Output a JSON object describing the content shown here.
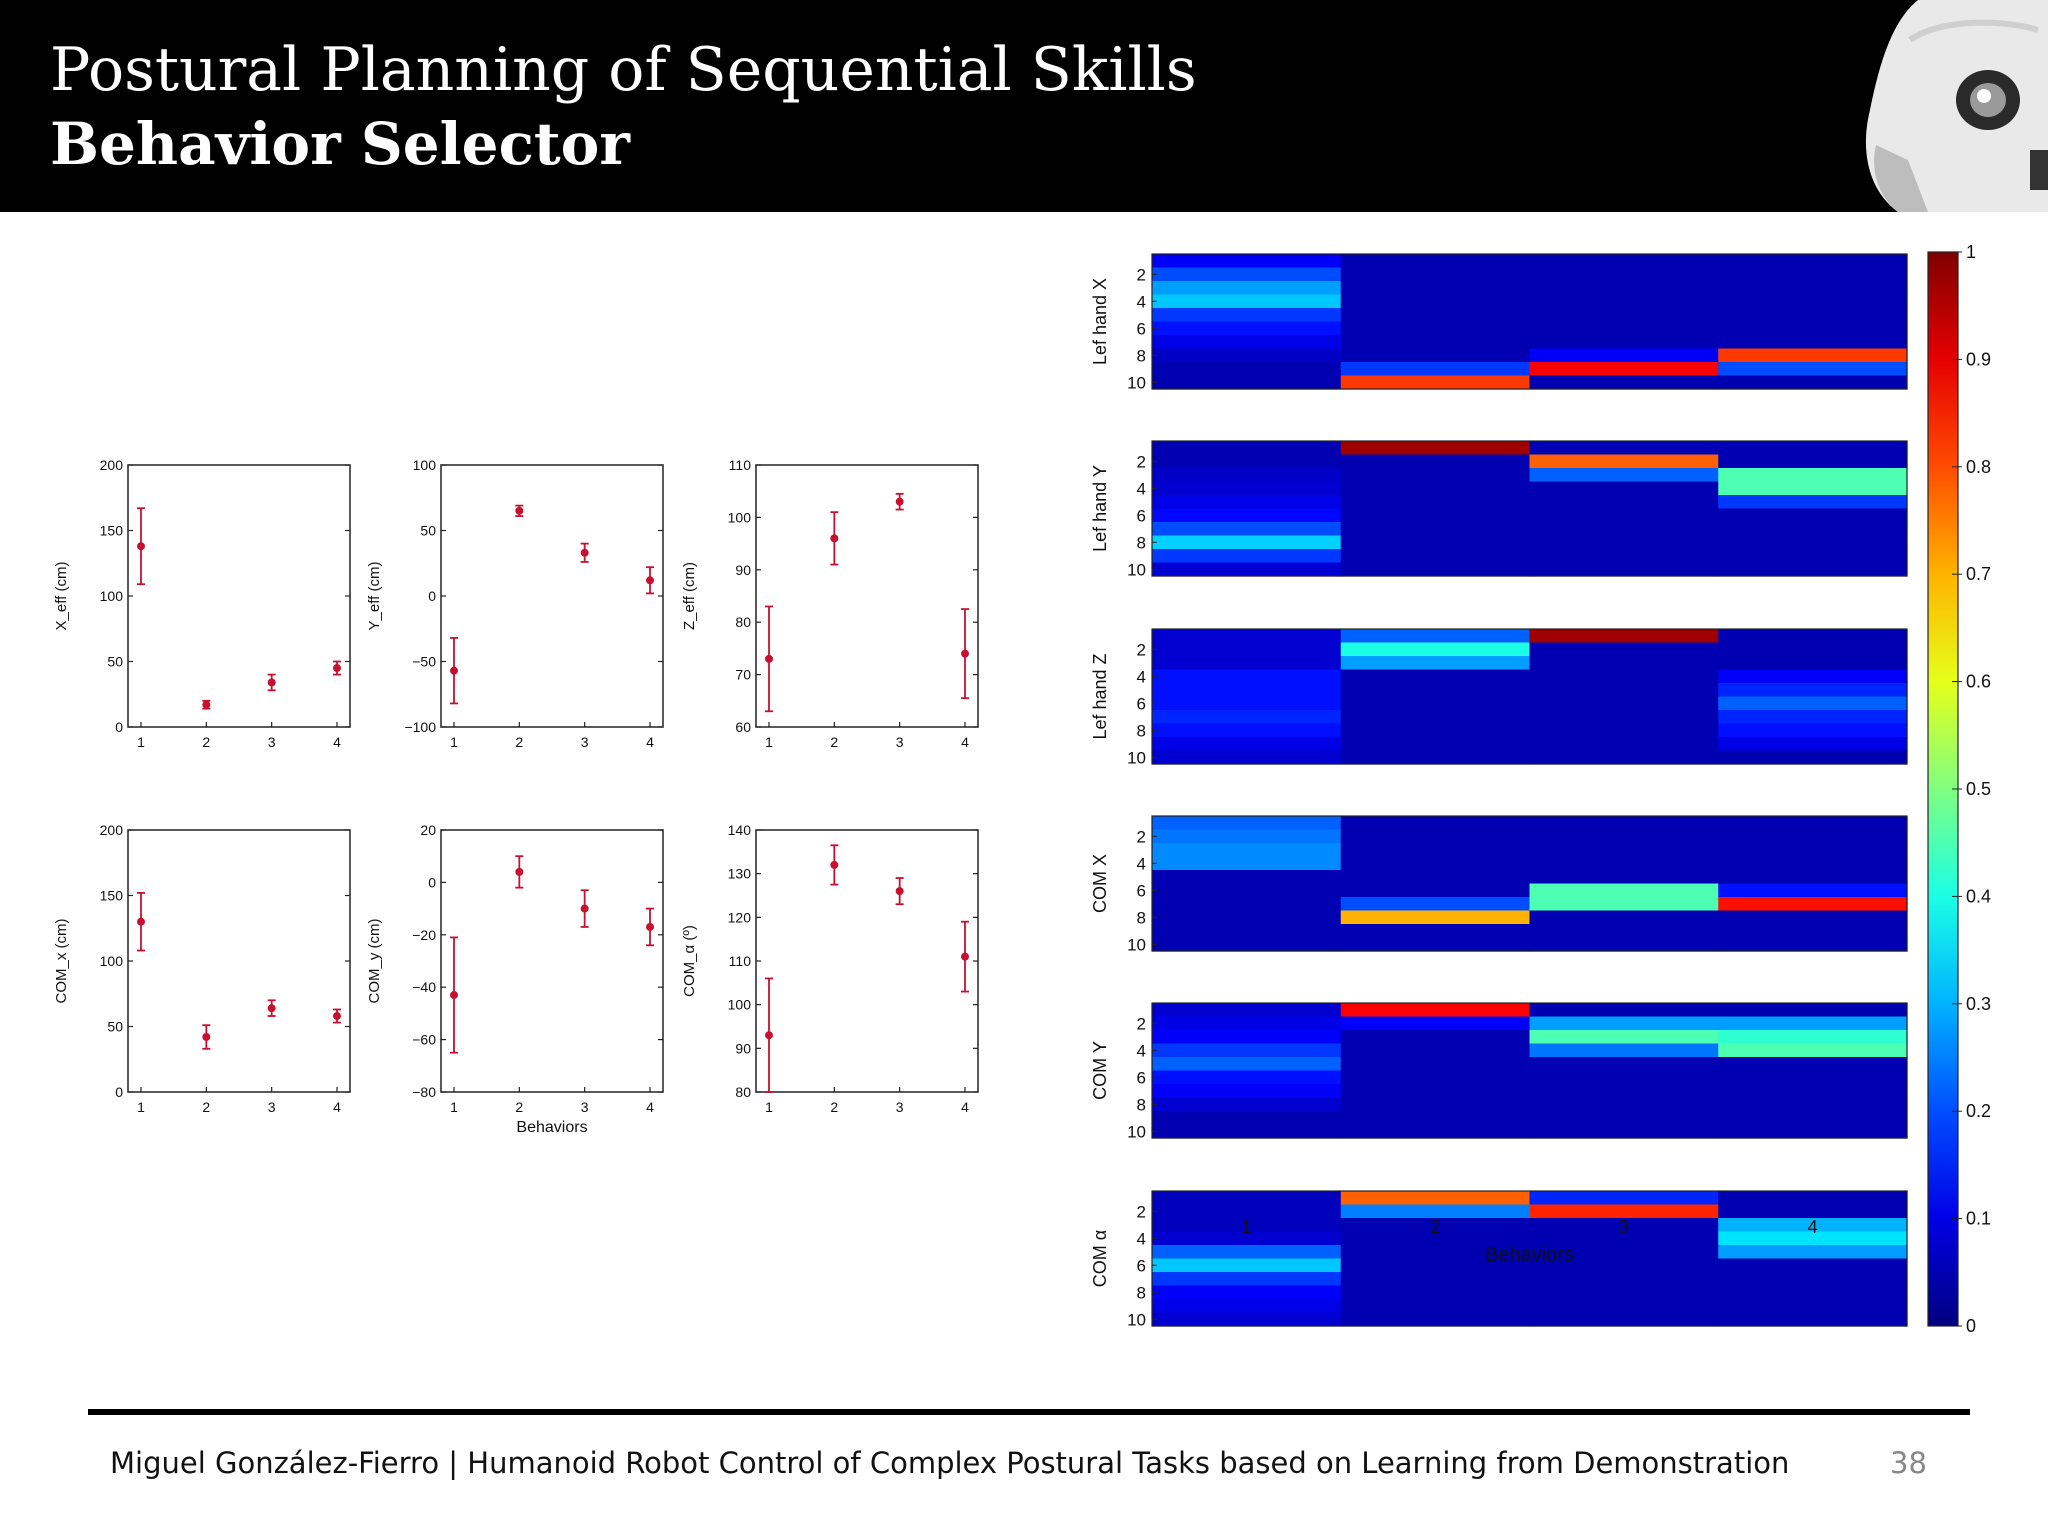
{
  "header": {
    "title": "Postural Planning of Sequential Skills",
    "subtitle": "Behavior Selector"
  },
  "footer": {
    "text": "Miguel González-Fierro  |  Humanoid Robot Control of Complex Postural Tasks based on Learning from Demonstration",
    "page": "38"
  },
  "chart_data": [
    {
      "type": "scatter",
      "ylabel": "X_eff (cm)",
      "x": [
        1,
        2,
        3,
        4
      ],
      "y": [
        138,
        17,
        34,
        45
      ],
      "err": [
        29,
        3,
        6,
        5
      ],
      "ylim": [
        0,
        200
      ],
      "yticks": [
        0,
        50,
        100,
        150,
        200
      ],
      "xticks": [
        1,
        2,
        3,
        4
      ],
      "xlabel": ""
    },
    {
      "type": "scatter",
      "ylabel": "Y_eff (cm)",
      "x": [
        1,
        2,
        3,
        4
      ],
      "y": [
        -57,
        65,
        33,
        12
      ],
      "err": [
        25,
        4,
        7,
        10
      ],
      "ylim": [
        -100,
        100
      ],
      "yticks": [
        -100,
        -50,
        0,
        50,
        100
      ],
      "xticks": [
        1,
        2,
        3,
        4
      ],
      "xlabel": ""
    },
    {
      "type": "scatter",
      "ylabel": "Z_eff (cm)",
      "x": [
        1,
        2,
        3,
        4
      ],
      "y": [
        73,
        96,
        103,
        74
      ],
      "err": [
        10,
        5,
        1.5,
        8.5
      ],
      "ylim": [
        60,
        110
      ],
      "yticks": [
        60,
        70,
        80,
        90,
        100,
        110
      ],
      "xticks": [
        1,
        2,
        3,
        4
      ],
      "xlabel": ""
    },
    {
      "type": "scatter",
      "ylabel": "COM_x (cm)",
      "x": [
        1,
        2,
        3,
        4
      ],
      "y": [
        130,
        42,
        64,
        58
      ],
      "err": [
        22,
        9,
        6,
        5
      ],
      "ylim": [
        0,
        200
      ],
      "yticks": [
        0,
        50,
        100,
        150,
        200
      ],
      "xticks": [
        1,
        2,
        3,
        4
      ],
      "xlabel": ""
    },
    {
      "type": "scatter",
      "ylabel": "COM_y (cm)",
      "x": [
        1,
        2,
        3,
        4
      ],
      "y": [
        -43,
        4,
        -10,
        -17
      ],
      "err": [
        22,
        6,
        7,
        7
      ],
      "ylim": [
        -80,
        20
      ],
      "yticks": [
        -80,
        -60,
        -40,
        -20,
        0,
        20
      ],
      "xticks": [
        1,
        2,
        3,
        4
      ],
      "xlabel": "Behaviors"
    },
    {
      "type": "scatter",
      "ylabel": "COM_α (º)",
      "x": [
        1,
        2,
        3,
        4
      ],
      "y": [
        93,
        132,
        126,
        111
      ],
      "err": [
        13,
        4.5,
        3,
        8
      ],
      "ylim": [
        80,
        140
      ],
      "yticks": [
        80,
        90,
        100,
        110,
        120,
        130,
        140
      ],
      "xticks": [
        1,
        2,
        3,
        4
      ],
      "xlabel": ""
    },
    {
      "type": "heatmap",
      "xlabel": "Behaviors",
      "categories": [
        1,
        2,
        3,
        4
      ],
      "colorbar": {
        "min": 0,
        "max": 1,
        "ticks": [
          "0",
          "0.1",
          "0.2",
          "0.3",
          "0.4",
          "0.5",
          "0.6",
          "0.7",
          "0.8",
          "0.9",
          "1"
        ]
      },
      "yticks": [
        "2",
        "4",
        "6",
        "8",
        "10"
      ],
      "panels": [
        {
          "name": "Lef hand X",
          "values": [
            [
              0.12,
              0.05,
              0.05,
              0.05
            ],
            [
              0.2,
              0.05,
              0.05,
              0.05
            ],
            [
              0.28,
              0.05,
              0.05,
              0.05
            ],
            [
              0.32,
              0.05,
              0.05,
              0.05
            ],
            [
              0.18,
              0.05,
              0.05,
              0.05
            ],
            [
              0.14,
              0.05,
              0.05,
              0.05
            ],
            [
              0.1,
              0.05,
              0.05,
              0.05
            ],
            [
              0.07,
              0.05,
              0.12,
              0.82
            ],
            [
              0.05,
              0.18,
              0.88,
              0.2
            ],
            [
              0.05,
              0.82,
              0.05,
              0.05
            ]
          ]
        },
        {
          "name": "Lef hand Y",
          "values": [
            [
              0.05,
              0.97,
              0.05,
              0.05
            ],
            [
              0.05,
              0.05,
              0.78,
              0.05
            ],
            [
              0.07,
              0.05,
              0.22,
              0.45
            ],
            [
              0.08,
              0.05,
              0.05,
              0.45
            ],
            [
              0.1,
              0.05,
              0.05,
              0.18
            ],
            [
              0.13,
              0.05,
              0.05,
              0.05
            ],
            [
              0.2,
              0.05,
              0.05,
              0.05
            ],
            [
              0.33,
              0.05,
              0.05,
              0.05
            ],
            [
              0.18,
              0.05,
              0.05,
              0.05
            ],
            [
              0.08,
              0.05,
              0.05,
              0.05
            ]
          ]
        },
        {
          "name": "Lef hand Z",
          "values": [
            [
              0.08,
              0.22,
              0.97,
              0.05
            ],
            [
              0.08,
              0.4,
              0.05,
              0.05
            ],
            [
              0.08,
              0.28,
              0.05,
              0.05
            ],
            [
              0.14,
              0.05,
              0.05,
              0.12
            ],
            [
              0.14,
              0.05,
              0.05,
              0.16
            ],
            [
              0.14,
              0.05,
              0.05,
              0.22
            ],
            [
              0.16,
              0.05,
              0.05,
              0.16
            ],
            [
              0.14,
              0.05,
              0.05,
              0.14
            ],
            [
              0.1,
              0.05,
              0.05,
              0.1
            ],
            [
              0.08,
              0.05,
              0.05,
              0.05
            ]
          ]
        },
        {
          "name": "COM X",
          "values": [
            [
              0.22,
              0.05,
              0.05,
              0.05
            ],
            [
              0.24,
              0.05,
              0.05,
              0.05
            ],
            [
              0.26,
              0.05,
              0.05,
              0.05
            ],
            [
              0.26,
              0.05,
              0.05,
              0.05
            ],
            [
              0.05,
              0.05,
              0.05,
              0.05
            ],
            [
              0.05,
              0.05,
              0.45,
              0.14
            ],
            [
              0.05,
              0.2,
              0.45,
              0.86
            ],
            [
              0.05,
              0.7,
              0.05,
              0.05
            ],
            [
              0.05,
              0.05,
              0.05,
              0.05
            ],
            [
              0.05,
              0.05,
              0.05,
              0.05
            ]
          ]
        },
        {
          "name": "COM Y",
          "values": [
            [
              0.08,
              0.88,
              0.05,
              0.05
            ],
            [
              0.1,
              0.12,
              0.28,
              0.28
            ],
            [
              0.12,
              0.05,
              0.45,
              0.42
            ],
            [
              0.18,
              0.05,
              0.24,
              0.45
            ],
            [
              0.22,
              0.05,
              0.05,
              0.05
            ],
            [
              0.14,
              0.05,
              0.05,
              0.05
            ],
            [
              0.12,
              0.05,
              0.05,
              0.05
            ],
            [
              0.08,
              0.05,
              0.05,
              0.05
            ],
            [
              0.05,
              0.05,
              0.05,
              0.05
            ],
            [
              0.05,
              0.05,
              0.05,
              0.05
            ]
          ]
        },
        {
          "name": "COM α",
          "values": [
            [
              0.06,
              0.78,
              0.16,
              0.05
            ],
            [
              0.06,
              0.25,
              0.84,
              0.05
            ],
            [
              0.06,
              0.05,
              0.05,
              0.3
            ],
            [
              0.08,
              0.05,
              0.05,
              0.35
            ],
            [
              0.22,
              0.05,
              0.05,
              0.28
            ],
            [
              0.32,
              0.05,
              0.05,
              0.05
            ],
            [
              0.18,
              0.05,
              0.05,
              0.05
            ],
            [
              0.12,
              0.05,
              0.05,
              0.05
            ],
            [
              0.1,
              0.05,
              0.05,
              0.05
            ],
            [
              0.08,
              0.05,
              0.05,
              0.05
            ]
          ]
        }
      ]
    }
  ]
}
